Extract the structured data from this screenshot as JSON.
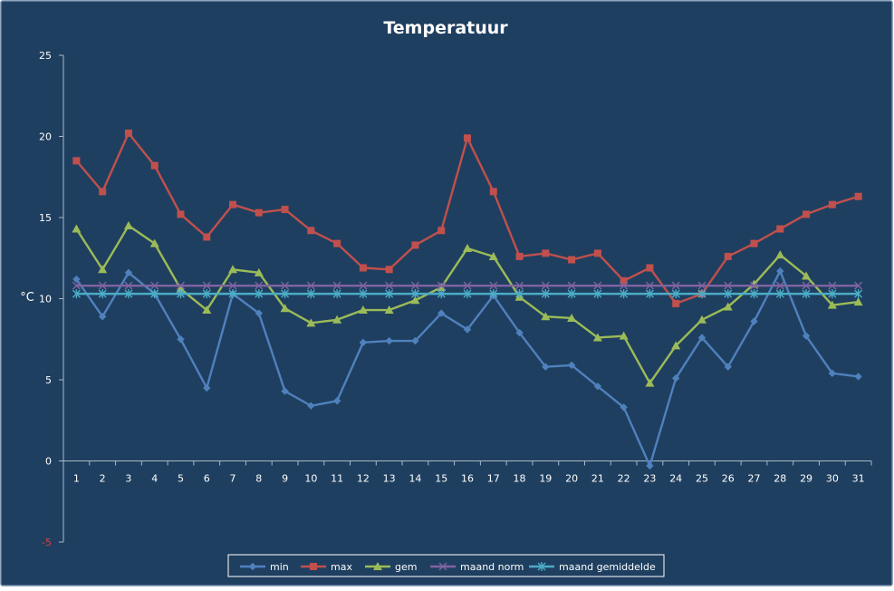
{
  "chart_data": {
    "type": "line",
    "title": "Temperatuur",
    "ylabel": "°C",
    "xlabel": "",
    "ylim": [
      -5,
      25
    ],
    "yticks": [
      -5,
      0,
      5,
      10,
      15,
      20,
      25
    ],
    "categories": [
      "1",
      "2",
      "3",
      "4",
      "5",
      "6",
      "7",
      "8",
      "9",
      "10",
      "11",
      "12",
      "13",
      "14",
      "15",
      "16",
      "17",
      "18",
      "19",
      "20",
      "21",
      "22",
      "23",
      "24",
      "25",
      "26",
      "27",
      "28",
      "29",
      "30",
      "31"
    ],
    "grid": false,
    "legend_position": "bottom",
    "series": [
      {
        "name": "min",
        "color": "#4f81bd",
        "marker": "diamond",
        "values": [
          11.2,
          8.9,
          11.6,
          10.3,
          7.5,
          4.5,
          10.3,
          9.1,
          4.3,
          3.4,
          3.7,
          7.3,
          7.4,
          7.4,
          9.1,
          8.1,
          10.2,
          7.9,
          5.8,
          5.9,
          4.6,
          3.3,
          -0.3,
          5.1,
          7.6,
          5.8,
          8.6,
          11.7,
          7.7,
          5.4,
          5.2
        ]
      },
      {
        "name": "max",
        "color": "#c0504d",
        "marker": "square",
        "values": [
          18.5,
          16.6,
          20.2,
          18.2,
          15.2,
          13.8,
          15.8,
          15.3,
          15.5,
          14.2,
          13.4,
          11.9,
          11.8,
          13.3,
          14.2,
          19.9,
          16.6,
          12.6,
          12.8,
          12.4,
          12.8,
          11.1,
          11.9,
          9.7,
          10.3,
          12.6,
          13.4,
          14.3,
          15.2,
          15.8,
          16.3
        ]
      },
      {
        "name": "gem",
        "color": "#9bbb59",
        "marker": "triangle",
        "values": [
          14.3,
          11.8,
          14.5,
          13.4,
          10.6,
          9.3,
          11.8,
          11.6,
          9.4,
          8.5,
          8.7,
          9.3,
          9.3,
          9.9,
          10.7,
          13.1,
          12.6,
          10.1,
          8.9,
          8.8,
          7.6,
          7.7,
          4.8,
          7.1,
          8.7,
          9.5,
          10.9,
          12.7,
          11.4,
          9.6,
          9.8
        ]
      },
      {
        "name": "maand norm",
        "color": "#8064a2",
        "marker": "x",
        "values": [
          10.8,
          10.8,
          10.8,
          10.8,
          10.8,
          10.8,
          10.8,
          10.8,
          10.8,
          10.8,
          10.8,
          10.8,
          10.8,
          10.8,
          10.8,
          10.8,
          10.8,
          10.8,
          10.8,
          10.8,
          10.8,
          10.8,
          10.8,
          10.8,
          10.8,
          10.8,
          10.8,
          10.8,
          10.8,
          10.8,
          10.8
        ]
      },
      {
        "name": "maand gemiddelde",
        "color": "#4bacc6",
        "marker": "star",
        "values": [
          10.3,
          10.3,
          10.3,
          10.3,
          10.3,
          10.3,
          10.3,
          10.3,
          10.3,
          10.3,
          10.3,
          10.3,
          10.3,
          10.3,
          10.3,
          10.3,
          10.3,
          10.3,
          10.3,
          10.3,
          10.3,
          10.3,
          10.3,
          10.3,
          10.3,
          10.3,
          10.3,
          10.3,
          10.3,
          10.3,
          10.3
        ]
      }
    ]
  },
  "theme": {
    "background": "#1f3f60",
    "frame_border": "#6e88a8",
    "text": "#ffffff",
    "tick_text": "#ffffff",
    "negative_tick_text": "#e04040",
    "axis": "#a9b8c8"
  }
}
